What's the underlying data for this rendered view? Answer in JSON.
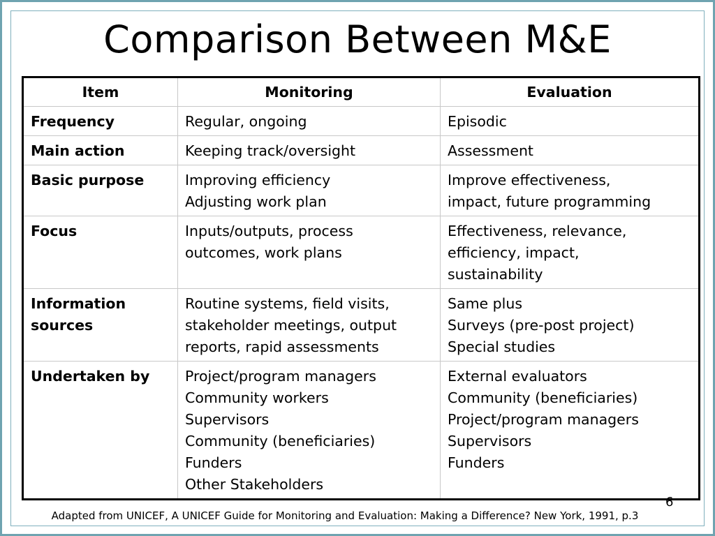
{
  "title": "Comparison Between M&E",
  "table": {
    "headers": [
      "Item",
      "Monitoring",
      "Evaluation"
    ],
    "rows": [
      {
        "item": [
          "Frequency"
        ],
        "monitoring": [
          "Regular, ongoing"
        ],
        "evaluation": [
          "Episodic"
        ]
      },
      {
        "item": [
          "Main action"
        ],
        "monitoring": [
          "Keeping track/oversight"
        ],
        "evaluation": [
          "Assessment"
        ]
      },
      {
        "item": [
          "Basic purpose"
        ],
        "monitoring": [
          "Improving efficiency",
          "Adjusting work plan"
        ],
        "evaluation": [
          "Improve effectiveness,",
          "impact, future programming"
        ]
      },
      {
        "item": [
          "Focus"
        ],
        "monitoring": [
          "Inputs/outputs, process",
          "outcomes, work plans"
        ],
        "evaluation": [
          "Effectiveness, relevance,",
          "efficiency, impact,",
          "sustainability"
        ]
      },
      {
        "item": [
          "Information",
          "sources"
        ],
        "monitoring": [
          "Routine systems, field visits,",
          "stakeholder meetings, output",
          "reports, rapid assessments"
        ],
        "evaluation": [
          "Same plus",
          "Surveys (pre-post project)",
          "Special studies"
        ]
      },
      {
        "item": [
          "Undertaken by"
        ],
        "monitoring": [
          "Project/program managers",
          "Community workers",
          "Supervisors",
          "Community (beneficiaries)",
          "Funders",
          "Other Stakeholders"
        ],
        "evaluation": [
          "External evaluators",
          "Community (beneficiaries)",
          "Project/program managers",
          "Supervisors",
          "Funders"
        ]
      }
    ]
  },
  "page_number": "6",
  "footnote": "Adapted from UNICEF, A UNICEF Guide for Monitoring and Evaluation: Making a Difference? New York, 1991, p.3"
}
